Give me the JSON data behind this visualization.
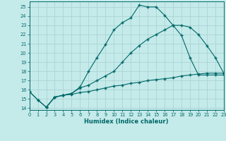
{
  "xlabel": "Humidex (Indice chaleur)",
  "bg_color": "#c5eaea",
  "grid_color": "#aad4d4",
  "line_color": "#006868",
  "xlim": [
    0,
    23
  ],
  "ylim": [
    13.8,
    25.6
  ],
  "xticks": [
    0,
    1,
    2,
    3,
    4,
    5,
    6,
    7,
    8,
    9,
    10,
    11,
    12,
    13,
    14,
    15,
    16,
    17,
    18,
    19,
    20,
    21,
    22,
    23
  ],
  "yticks": [
    14,
    15,
    16,
    17,
    18,
    19,
    20,
    21,
    22,
    23,
    24,
    25
  ],
  "curve1_x": [
    0,
    1,
    2,
    3,
    4,
    5,
    6,
    7,
    8,
    9,
    10,
    11,
    12,
    13,
    14,
    15,
    16,
    17,
    18,
    19,
    20,
    21,
    22,
    23
  ],
  "curve1_y": [
    15.8,
    14.9,
    14.1,
    15.2,
    15.4,
    15.5,
    15.7,
    15.8,
    16.0,
    16.2,
    16.4,
    16.5,
    16.7,
    16.8,
    17.0,
    17.1,
    17.2,
    17.3,
    17.5,
    17.6,
    17.7,
    17.8,
    17.8,
    17.8
  ],
  "curve2_x": [
    2,
    3,
    4,
    5,
    6,
    7,
    8,
    9,
    10,
    11,
    12,
    13,
    14,
    15,
    16,
    17,
    18,
    19,
    20,
    21,
    22,
    23
  ],
  "curve2_y": [
    14.1,
    15.2,
    15.4,
    15.6,
    16.3,
    18.0,
    19.5,
    20.9,
    22.5,
    23.3,
    23.8,
    25.2,
    25.0,
    25.0,
    24.1,
    23.0,
    21.9,
    19.5,
    17.6,
    17.6,
    17.6,
    17.6
  ],
  "curve3_x": [
    0,
    1,
    2,
    3,
    4,
    5,
    6,
    7,
    8,
    9,
    10,
    11,
    12,
    13,
    14,
    15,
    16,
    17,
    18,
    19,
    20,
    21,
    22,
    23
  ],
  "curve3_y": [
    15.8,
    14.9,
    14.1,
    15.2,
    15.4,
    15.6,
    16.2,
    16.5,
    17.0,
    17.5,
    18.0,
    19.0,
    20.0,
    20.8,
    21.5,
    22.0,
    22.5,
    23.0,
    23.0,
    22.8,
    22.0,
    20.8,
    19.5,
    17.8
  ]
}
